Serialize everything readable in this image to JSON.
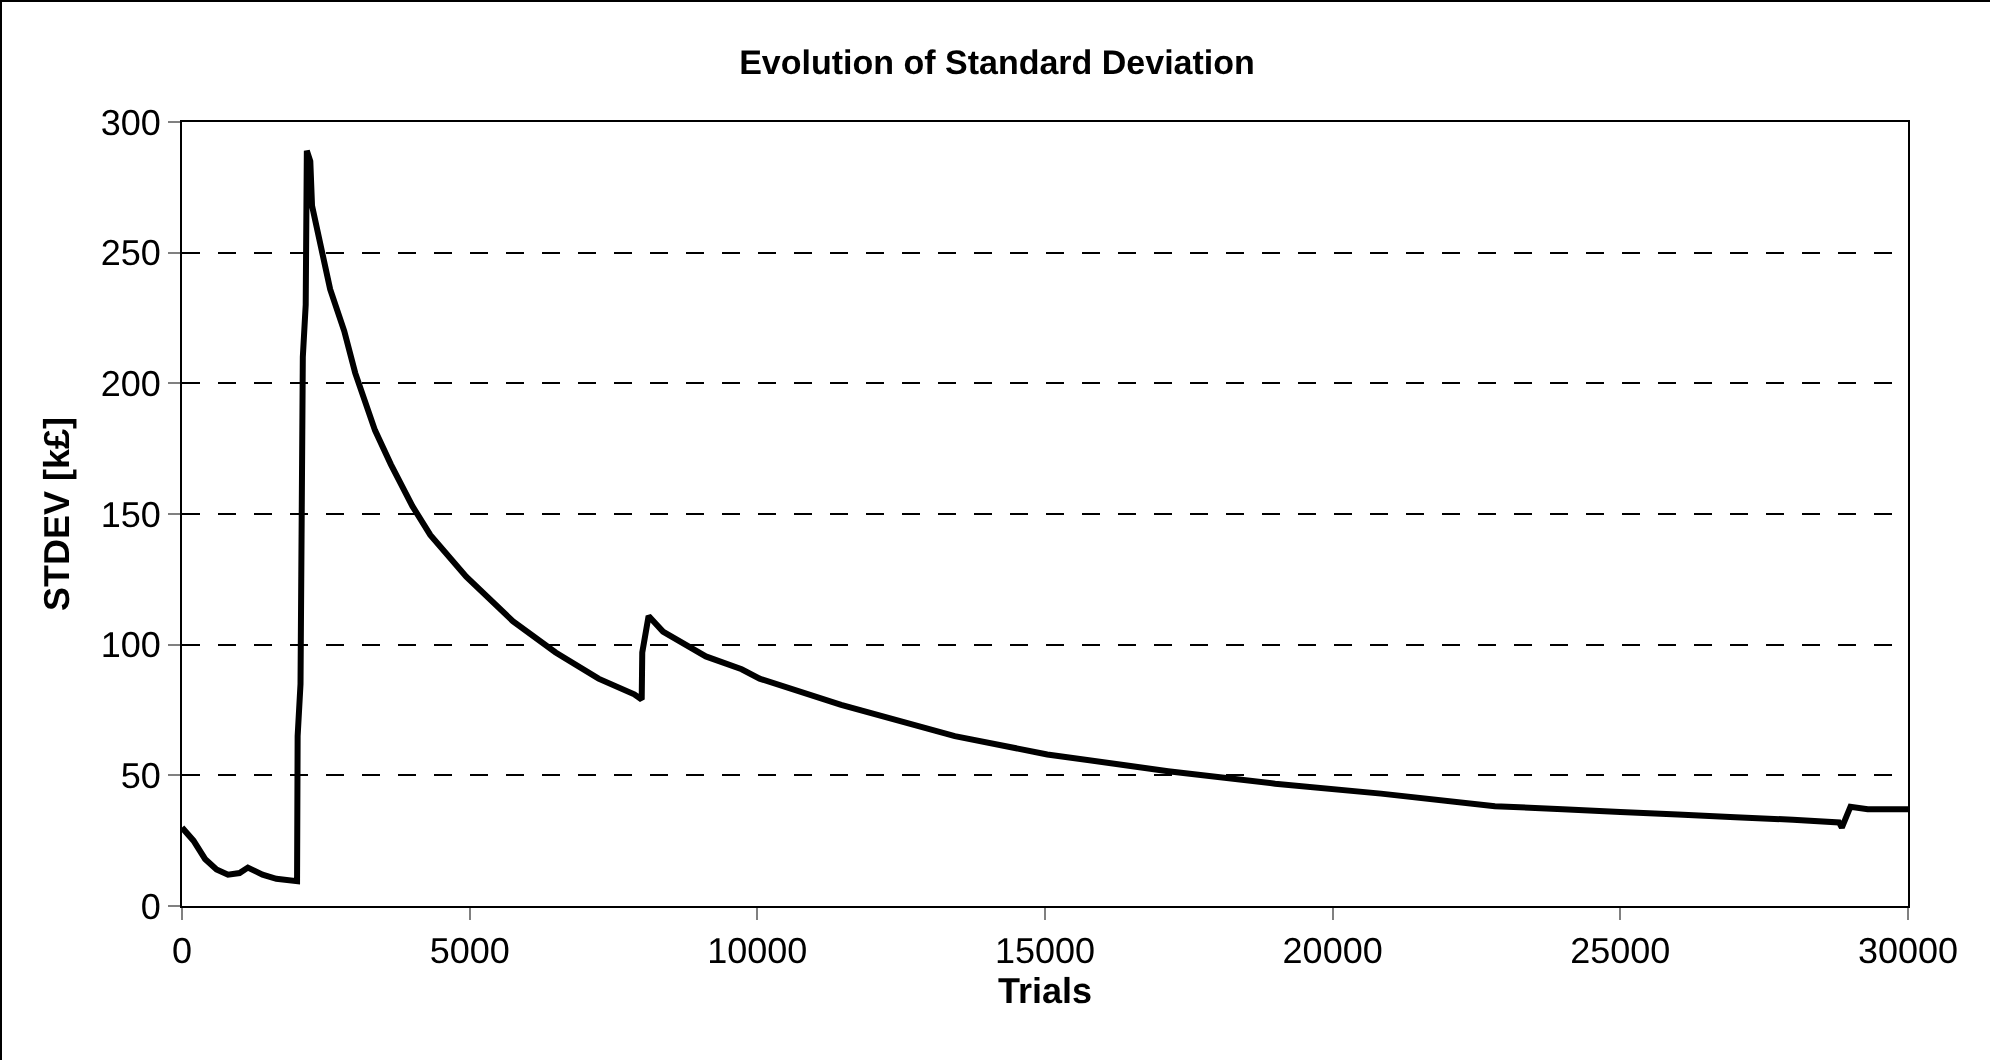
{
  "chart_data": {
    "type": "line",
    "title": "Evolution of Standard Deviation",
    "xlabel": "Trials",
    "ylabel": "STDEV [k£]",
    "x": [
      0,
      200,
      400,
      600,
      800,
      1000,
      1145,
      1400,
      1640,
      2000,
      2010,
      2060,
      2100,
      2150,
      2170,
      2230,
      2260,
      2575,
      2820,
      3010,
      3355,
      3630,
      4005,
      4315,
      4940,
      5750,
      6495,
      7240,
      7860,
      7990,
      8000,
      8110,
      8360,
      9105,
      9728,
      10040,
      11457,
      13433,
      15040,
      17140,
      19000,
      20840,
      22820,
      24000,
      25000,
      26000,
      27000,
      28000,
      28800,
      28850,
      29000,
      29300,
      30000
    ],
    "series": [
      {
        "color": "#000000",
        "values": [
          30,
          25,
          18,
          14,
          12,
          12.6,
          14.7,
          12,
          10.4,
          9.5,
          65,
          85,
          210,
          230,
          289,
          285,
          268,
          236,
          220,
          204,
          182,
          169,
          153,
          142,
          126,
          109,
          97,
          87,
          81,
          79,
          97,
          111,
          105,
          95.5,
          90.6,
          87,
          77,
          65,
          58,
          51.6,
          46.8,
          43,
          38.2,
          37,
          36,
          35,
          34,
          33,
          32,
          30,
          38,
          37,
          37
        ]
      }
    ],
    "xlim": [
      0,
      30000
    ],
    "xticks": [
      0,
      5000,
      10000,
      15000,
      20000,
      25000,
      30000
    ],
    "ylim": [
      0,
      300
    ],
    "yticks": [
      0,
      50,
      100,
      150,
      200,
      250,
      300
    ],
    "grid": "y",
    "marker": "none",
    "line_style": "solid"
  }
}
